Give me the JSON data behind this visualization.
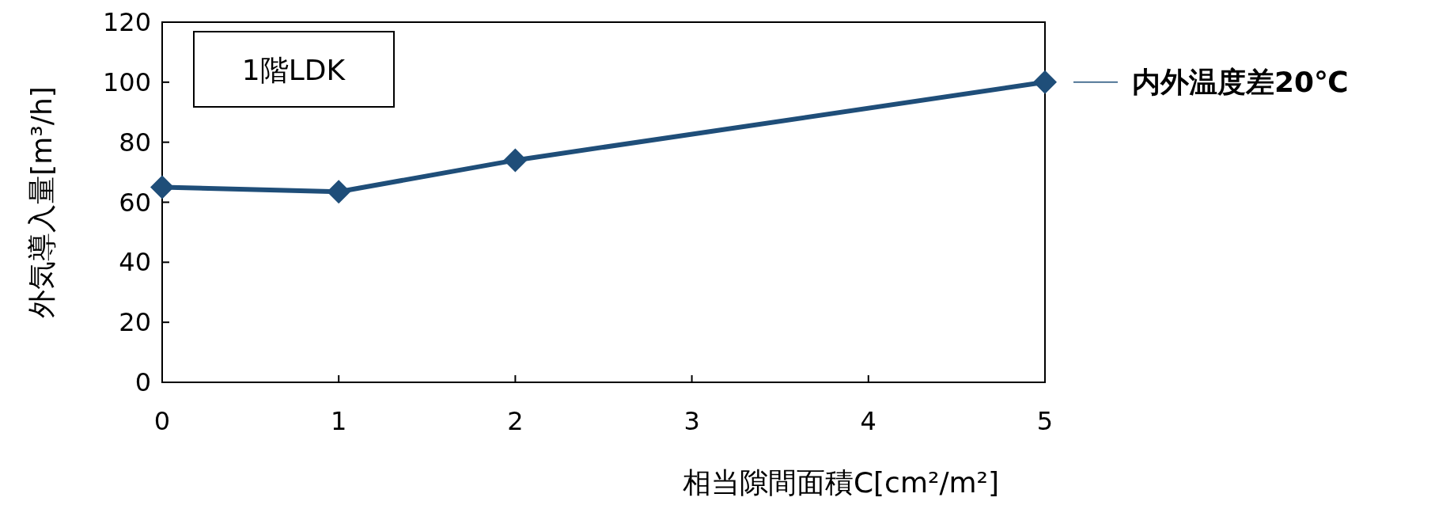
{
  "chart_data": {
    "type": "line",
    "title": "1階LDK",
    "xlabel": "相当隙間面積C[cm²/m²]",
    "ylabel": "外気導入量[m³/h]",
    "x": [
      0,
      1,
      2,
      5
    ],
    "series": [
      {
        "name": "内外温度差20℃",
        "color": "#1f4e79",
        "values": [
          65,
          63.5,
          74,
          100
        ]
      }
    ],
    "xlim": [
      0,
      5
    ],
    "ylim": [
      0,
      120
    ],
    "xticks": [
      0,
      1,
      2,
      3,
      4,
      5
    ],
    "yticks": [
      0,
      20,
      40,
      60,
      80,
      100,
      120
    ],
    "marker": "diamond",
    "line_style": "solid",
    "grid": false,
    "legend": "right"
  }
}
